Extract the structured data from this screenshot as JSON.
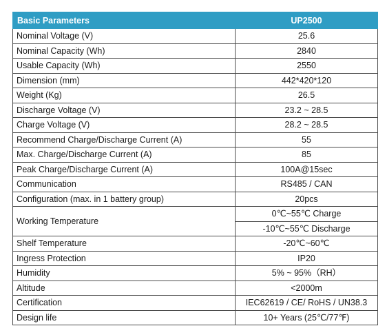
{
  "header": {
    "param_label": "Basic Parameters",
    "model": "UP2500"
  },
  "rows": [
    {
      "label": "Nominal Voltage (V)",
      "value": "25.6"
    },
    {
      "label": "Nominal Capacity (Wh)",
      "value": "2840"
    },
    {
      "label": "Usable Capacity (Wh)",
      "value": "2550"
    },
    {
      "label": "Dimension (mm)",
      "value": "442*420*120"
    },
    {
      "label": "Weight (Kg)",
      "value": "26.5"
    },
    {
      "label": "Discharge Voltage (V)",
      "value": "23.2 ~ 28.5"
    },
    {
      "label": "Charge Voltage (V)",
      "value": "28.2 ~ 28.5"
    },
    {
      "label": "Recommend Charge/Discharge Current (A)",
      "value": "55"
    },
    {
      "label": "Max. Charge/Discharge Current (A)",
      "value": "85"
    },
    {
      "label": "Peak Charge/Discharge Current (A)",
      "value": "100A@15sec"
    },
    {
      "label": "Communication",
      "value": "RS485 / CAN"
    },
    {
      "label": "Configuration (max. in 1 battery group)",
      "value": "20pcs"
    },
    {
      "label": "Working Temperature",
      "value": "0℃~55℃ Charge",
      "value2": "-10℃~55℃ Discharge"
    },
    {
      "label": "Shelf Temperature",
      "value": "-20℃~60℃"
    },
    {
      "label": "Ingress Protection",
      "value": "IP20"
    },
    {
      "label": "Humidity",
      "value": "5% ~ 95%（RH）"
    },
    {
      "label": "Altitude",
      "value": "<2000m"
    },
    {
      "label": "Certification",
      "value": "IEC62619 / CE/ RoHS / UN38.3"
    },
    {
      "label": "Design life",
      "value": "10+ Years (25℃/77℉)"
    }
  ]
}
